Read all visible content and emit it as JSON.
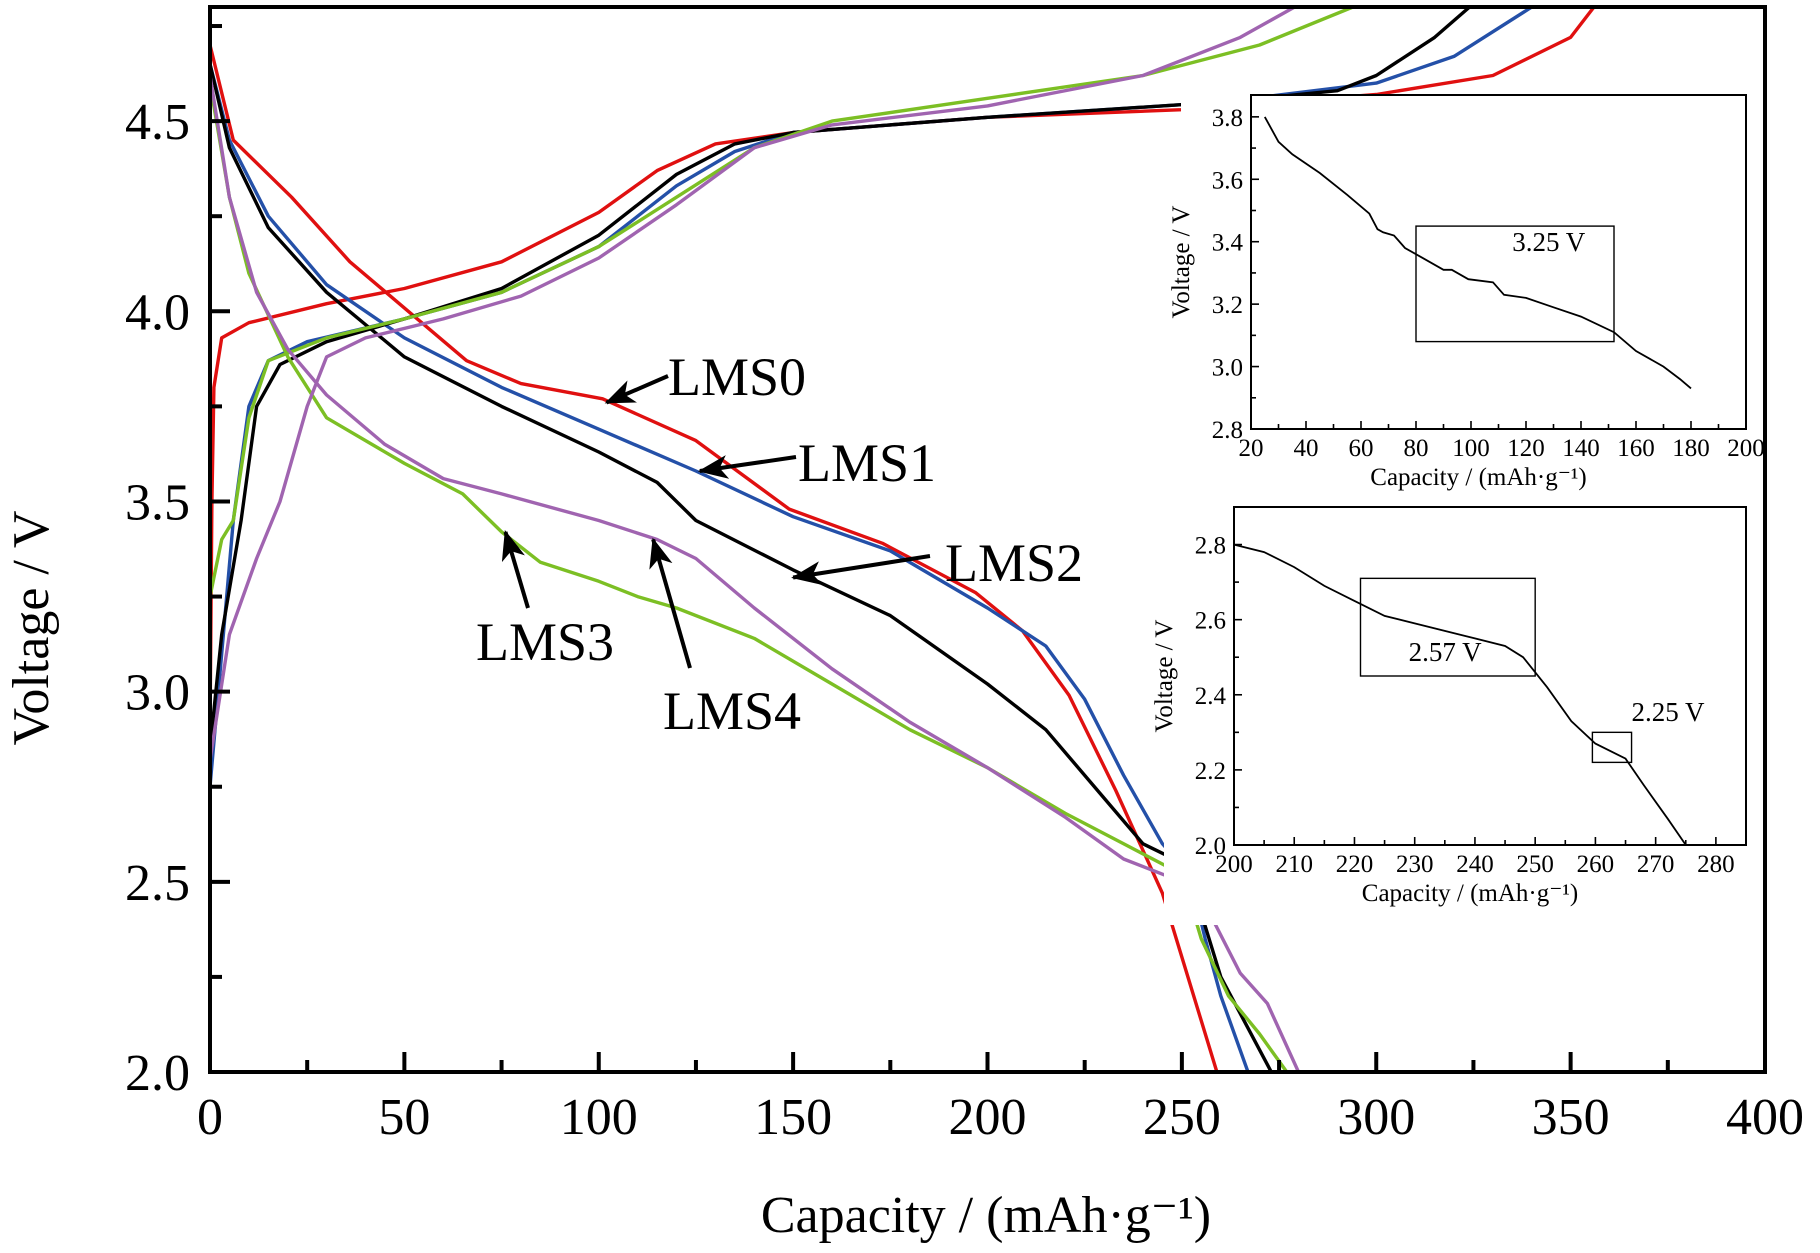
{
  "chart_data": {
    "type": "line",
    "title": "",
    "xlabel": "Capacity / (mAh·g⁻¹)",
    "ylabel": "Voltage / V",
    "xlim": [
      0,
      400
    ],
    "ylim": [
      2.0,
      4.8
    ],
    "x_ticks": [
      0,
      50,
      100,
      150,
      200,
      250,
      300,
      350,
      400
    ],
    "x_tick_labels": [
      "0",
      "50",
      "100",
      "150",
      "200",
      "250",
      "300",
      "350",
      "400"
    ],
    "y_ticks": [
      2.0,
      2.5,
      3.0,
      3.5,
      4.0,
      4.5
    ],
    "y_tick_labels": [
      "2.0",
      "2.5",
      "3.0",
      "3.5",
      "4.0",
      "4.5"
    ],
    "grid": false,
    "legend": "none (arrow annotations)",
    "series": [
      {
        "name": "LMS0",
        "color": "#e01010",
        "charge": [
          [
            0,
            2.9
          ],
          [
            0.5,
            3.5
          ],
          [
            1,
            3.8
          ],
          [
            3,
            3.93
          ],
          [
            10,
            3.97
          ],
          [
            30,
            4.02
          ],
          [
            50,
            4.06
          ],
          [
            75,
            4.13
          ],
          [
            100,
            4.26
          ],
          [
            115,
            4.37
          ],
          [
            130,
            4.44
          ],
          [
            150,
            4.47
          ],
          [
            200,
            4.51
          ],
          [
            250,
            4.53
          ],
          [
            300,
            4.57
          ],
          [
            330,
            4.62
          ],
          [
            350,
            4.72
          ],
          [
            356,
            4.8
          ]
        ],
        "discharge": [
          [
            0,
            4.7
          ],
          [
            6,
            4.45
          ],
          [
            21,
            4.3
          ],
          [
            36,
            4.13
          ],
          [
            51,
            4.0
          ],
          [
            66,
            3.87
          ],
          [
            80,
            3.81
          ],
          [
            101,
            3.77
          ],
          [
            125,
            3.66
          ],
          [
            149,
            3.48
          ],
          [
            173,
            3.39
          ],
          [
            197,
            3.26
          ],
          [
            209,
            3.16
          ],
          [
            221,
            2.99
          ],
          [
            233,
            2.74
          ],
          [
            245,
            2.47
          ],
          [
            259,
            2.0
          ]
        ]
      },
      {
        "name": "LMS1",
        "color": "#2450a8",
        "charge": [
          [
            0,
            2.75
          ],
          [
            3,
            3.1
          ],
          [
            6,
            3.45
          ],
          [
            10,
            3.75
          ],
          [
            15,
            3.87
          ],
          [
            25,
            3.92
          ],
          [
            50,
            3.98
          ],
          [
            75,
            4.05
          ],
          [
            100,
            4.17
          ],
          [
            120,
            4.33
          ],
          [
            135,
            4.42
          ],
          [
            150,
            4.47
          ],
          [
            200,
            4.51
          ],
          [
            260,
            4.55
          ],
          [
            300,
            4.6
          ],
          [
            320,
            4.67
          ],
          [
            340,
            4.8
          ]
        ],
        "discharge": [
          [
            0,
            4.65
          ],
          [
            5,
            4.45
          ],
          [
            15,
            4.25
          ],
          [
            30,
            4.07
          ],
          [
            50,
            3.93
          ],
          [
            75,
            3.8
          ],
          [
            100,
            3.69
          ],
          [
            125,
            3.58
          ],
          [
            150,
            3.46
          ],
          [
            175,
            3.37
          ],
          [
            200,
            3.22
          ],
          [
            215,
            3.12
          ],
          [
            225,
            2.98
          ],
          [
            235,
            2.78
          ],
          [
            245,
            2.6
          ],
          [
            252,
            2.52
          ],
          [
            256,
            2.35
          ],
          [
            260,
            2.2
          ],
          [
            267,
            2.0
          ]
        ]
      },
      {
        "name": "LMS2",
        "color": "#000000",
        "charge": [
          [
            0,
            2.85
          ],
          [
            3,
            3.15
          ],
          [
            8,
            3.45
          ],
          [
            12,
            3.75
          ],
          [
            18,
            3.86
          ],
          [
            30,
            3.92
          ],
          [
            50,
            3.98
          ],
          [
            75,
            4.06
          ],
          [
            100,
            4.2
          ],
          [
            120,
            4.36
          ],
          [
            135,
            4.44
          ],
          [
            150,
            4.47
          ],
          [
            200,
            4.51
          ],
          [
            260,
            4.55
          ],
          [
            290,
            4.58
          ],
          [
            300,
            4.62
          ],
          [
            315,
            4.72
          ],
          [
            324,
            4.8
          ]
        ],
        "discharge": [
          [
            0,
            4.65
          ],
          [
            5,
            4.43
          ],
          [
            15,
            4.22
          ],
          [
            30,
            4.05
          ],
          [
            50,
            3.88
          ],
          [
            75,
            3.75
          ],
          [
            100,
            3.63
          ],
          [
            115,
            3.55
          ],
          [
            125,
            3.45
          ],
          [
            150,
            3.32
          ],
          [
            175,
            3.2
          ],
          [
            200,
            3.02
          ],
          [
            215,
            2.9
          ],
          [
            230,
            2.72
          ],
          [
            240,
            2.6
          ],
          [
            250,
            2.55
          ],
          [
            254,
            2.45
          ],
          [
            260,
            2.25
          ],
          [
            273,
            2.0
          ]
        ]
      },
      {
        "name": "LMS3",
        "color": "#7cbf24",
        "charge": [
          [
            0,
            3.25
          ],
          [
            3,
            3.4
          ],
          [
            6,
            3.45
          ],
          [
            10,
            3.72
          ],
          [
            15,
            3.87
          ],
          [
            30,
            3.93
          ],
          [
            50,
            3.98
          ],
          [
            75,
            4.05
          ],
          [
            100,
            4.17
          ],
          [
            120,
            4.3
          ],
          [
            140,
            4.43
          ],
          [
            160,
            4.5
          ],
          [
            200,
            4.56
          ],
          [
            240,
            4.62
          ],
          [
            270,
            4.7
          ],
          [
            294,
            4.8
          ]
        ],
        "discharge": [
          [
            0,
            4.6
          ],
          [
            5,
            4.3
          ],
          [
            10,
            4.1
          ],
          [
            20,
            3.88
          ],
          [
            30,
            3.72
          ],
          [
            50,
            3.6
          ],
          [
            65,
            3.52
          ],
          [
            75,
            3.42
          ],
          [
            85,
            3.34
          ],
          [
            100,
            3.29
          ],
          [
            110,
            3.25
          ],
          [
            120,
            3.22
          ],
          [
            140,
            3.14
          ],
          [
            160,
            3.02
          ],
          [
            180,
            2.9
          ],
          [
            200,
            2.8
          ],
          [
            220,
            2.68
          ],
          [
            235,
            2.6
          ],
          [
            250,
            2.52
          ],
          [
            255,
            2.35
          ],
          [
            262,
            2.2
          ],
          [
            270,
            2.1
          ],
          [
            277,
            2.0
          ]
        ]
      },
      {
        "name": "LMS4",
        "color": "#a064b0",
        "charge": [
          [
            0,
            2.82
          ],
          [
            5,
            3.15
          ],
          [
            12,
            3.35
          ],
          [
            18,
            3.5
          ],
          [
            25,
            3.75
          ],
          [
            30,
            3.88
          ],
          [
            40,
            3.93
          ],
          [
            60,
            3.98
          ],
          [
            80,
            4.04
          ],
          [
            100,
            4.14
          ],
          [
            120,
            4.28
          ],
          [
            140,
            4.43
          ],
          [
            160,
            4.49
          ],
          [
            200,
            4.54
          ],
          [
            240,
            4.62
          ],
          [
            265,
            4.72
          ],
          [
            279,
            4.8
          ]
        ],
        "discharge": [
          [
            0,
            4.62
          ],
          [
            5,
            4.3
          ],
          [
            12,
            4.05
          ],
          [
            20,
            3.9
          ],
          [
            30,
            3.78
          ],
          [
            45,
            3.65
          ],
          [
            60,
            3.56
          ],
          [
            75,
            3.52
          ],
          [
            100,
            3.45
          ],
          [
            115,
            3.4
          ],
          [
            125,
            3.35
          ],
          [
            140,
            3.22
          ],
          [
            160,
            3.06
          ],
          [
            180,
            2.92
          ],
          [
            200,
            2.8
          ],
          [
            220,
            2.67
          ],
          [
            235,
            2.56
          ],
          [
            250,
            2.5
          ],
          [
            258,
            2.4
          ],
          [
            265,
            2.26
          ],
          [
            272,
            2.18
          ],
          [
            280,
            2.0
          ]
        ]
      }
    ],
    "annotations": [
      {
        "text": "LMS0",
        "series": "LMS0",
        "arrow_to": [
          102,
          3.76
        ]
      },
      {
        "text": "LMS1",
        "series": "LMS1",
        "arrow_to": [
          126,
          3.58
        ]
      },
      {
        "text": "LMS2",
        "series": "LMS2",
        "arrow_to": [
          150,
          3.3
        ]
      },
      {
        "text": "LMS3",
        "series": "LMS3",
        "arrow_to": [
          76,
          3.42
        ]
      },
      {
        "text": "LMS4",
        "series": "LMS4",
        "arrow_to": [
          114,
          3.4
        ]
      }
    ],
    "insets": [
      {
        "xlabel": "Capacity / (mAh·g⁻¹)",
        "ylabel": "Voltage / V",
        "xlim": [
          20,
          200
        ],
        "ylim": [
          2.8,
          3.87
        ],
        "x_ticks": [
          20,
          40,
          60,
          80,
          100,
          120,
          140,
          160,
          180,
          200
        ],
        "x_tick_labels": [
          "20",
          "40",
          "60",
          "80",
          "100",
          "120",
          "140",
          "160",
          "180",
          "200"
        ],
        "y_ticks": [
          2.8,
          3.0,
          3.2,
          3.4,
          3.6,
          3.8
        ],
        "y_tick_labels": [
          "2.8",
          "3.0",
          "3.2",
          "3.4",
          "3.6",
          "3.8"
        ],
        "color": "#000000",
        "points": [
          [
            25,
            3.8
          ],
          [
            30,
            3.72
          ],
          [
            35,
            3.68
          ],
          [
            45,
            3.62
          ],
          [
            55,
            3.55
          ],
          [
            63,
            3.49
          ],
          [
            66,
            3.44
          ],
          [
            68,
            3.43
          ],
          [
            72,
            3.42
          ],
          [
            76,
            3.38
          ],
          [
            82,
            3.35
          ],
          [
            90,
            3.31
          ],
          [
            93,
            3.31
          ],
          [
            99,
            3.28
          ],
          [
            108,
            3.27
          ],
          [
            112,
            3.23
          ],
          [
            120,
            3.22
          ],
          [
            130,
            3.19
          ],
          [
            140,
            3.16
          ],
          [
            152,
            3.11
          ],
          [
            160,
            3.05
          ],
          [
            170,
            3.0
          ],
          [
            176,
            2.96
          ],
          [
            180,
            2.93
          ]
        ],
        "boxes": [
          {
            "x": [
              80,
              152
            ],
            "y": [
              3.08,
              3.45
            ]
          }
        ],
        "labels": [
          {
            "text": "3.25 V",
            "at": [
              115,
              3.37
            ]
          }
        ]
      },
      {
        "xlabel": "Capacity / (mAh·g⁻¹)",
        "ylabel": "Voltage / V",
        "xlim": [
          200,
          285
        ],
        "ylim": [
          2.0,
          2.9
        ],
        "x_ticks": [
          200,
          210,
          220,
          230,
          240,
          250,
          260,
          270,
          280
        ],
        "x_tick_labels": [
          "200",
          "210",
          "220",
          "230",
          "240",
          "250",
          "260",
          "270",
          "280"
        ],
        "y_ticks": [
          2.0,
          2.2,
          2.4,
          2.6,
          2.8
        ],
        "y_tick_labels": [
          "2.0",
          "2.2",
          "2.4",
          "2.6",
          "2.8"
        ],
        "color": "#000000",
        "points": [
          [
            200,
            2.8
          ],
          [
            205,
            2.78
          ],
          [
            210,
            2.74
          ],
          [
            215,
            2.69
          ],
          [
            220,
            2.65
          ],
          [
            225,
            2.61
          ],
          [
            230,
            2.59
          ],
          [
            240,
            2.55
          ],
          [
            245,
            2.53
          ],
          [
            248,
            2.5
          ],
          [
            252,
            2.42
          ],
          [
            256,
            2.33
          ],
          [
            260,
            2.27
          ],
          [
            265,
            2.23
          ],
          [
            268,
            2.16
          ],
          [
            272,
            2.07
          ],
          [
            275,
            2.0
          ]
        ],
        "boxes": [
          {
            "x": [
              221,
              250
            ],
            "y": [
              2.45,
              2.71
            ]
          },
          {
            "x": [
              259.5,
              266
            ],
            "y": [
              2.22,
              2.3
            ]
          }
        ],
        "labels": [
          {
            "text": "2.57 V",
            "at": [
              229,
              2.49
            ]
          },
          {
            "text": "2.25 V",
            "at": [
              266,
              2.33
            ]
          }
        ]
      }
    ]
  }
}
